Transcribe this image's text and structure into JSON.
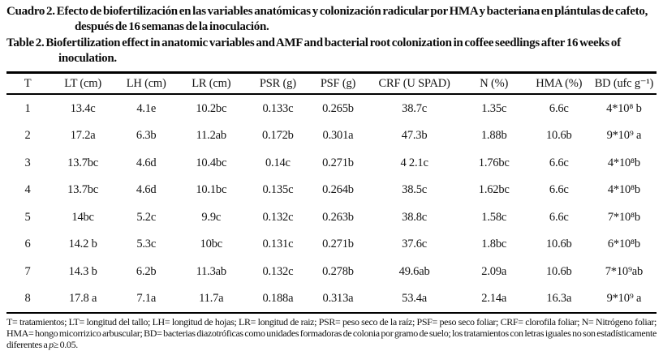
{
  "page": {
    "background": "#ffffff",
    "text_color": "#141414"
  },
  "captions": {
    "spanish": {
      "label": "Cuadro 2.",
      "text": " Efecto de biofertilización en las variables anatómicas y colonización radicular por HMA y bacteriana en plántulas de cafeto, después de 16 semanas de la inoculación."
    },
    "english": {
      "label": "Table 2.",
      "text": " Biofertilization effect in anatomic variables and AMF and bacterial root colonization in coffee seedlings after 16 weeks of inoculation."
    }
  },
  "chart_data": {
    "type": "table",
    "title": "Cuadro 2 / Table 2 — Biofertilization effect in coffee seedlings after 16 weeks of inoculation",
    "headers": [
      "T",
      "LT (cm)",
      "LH (cm)",
      "LR (cm)",
      "PSR (g)",
      "PSF (g)",
      "CRF (U SPAD)",
      "N (%)",
      "HMA (%)",
      "BD (ufc g⁻¹)"
    ],
    "col_widths_pct": [
      6.5,
      10.5,
      9,
      11,
      9.5,
      9,
      14.5,
      10,
      10,
      10
    ],
    "rows": [
      [
        "1",
        "13.4c",
        "4.1e",
        "10.2bc",
        "0.133c",
        "0.265b",
        "38.7c",
        "1.35c",
        "6.6c",
        "4*10⁸ b"
      ],
      [
        "2",
        "17.2a",
        "6.3b",
        "11.2ab",
        "0.172b",
        "0.301a",
        "47.3b",
        "1.88b",
        "10.6b",
        "9*10⁹ a"
      ],
      [
        "3",
        "13.7bc",
        "4.6d",
        "10.4bc",
        "0.14c",
        "0.271b",
        "4 2.1c",
        "1.76bc",
        "6.6c",
        "4*10⁸b"
      ],
      [
        "4",
        "13.7bc",
        "4.6d",
        "10.1bc",
        "0.135c",
        "0.264b",
        "38.5c",
        "1.62bc",
        "6.6c",
        "4*10⁸b"
      ],
      [
        "5",
        "14bc",
        "5.2c",
        "9.9c",
        "0.132c",
        "0.263b",
        "38.8c",
        "1.58c",
        "6.6c",
        "7*10⁸b"
      ],
      [
        "6",
        "14.2 b",
        "5.3c",
        "10bc",
        "0.131c",
        "0.271b",
        "37.6c",
        "1.8bc",
        "10.6b",
        "6*10⁸b"
      ],
      [
        "7",
        "14.3 b",
        "6.2b",
        "11.3ab",
        "0.132c",
        "0.278b",
        "49.6ab",
        "2.09a",
        "10.6b",
        "7*10⁹ab"
      ],
      [
        "8",
        "17.8 a",
        "7.1a",
        "11.7a",
        "0.188a",
        "0.313a",
        "53.4a",
        "2.14a",
        "16.3a",
        "9*10⁹ a"
      ]
    ]
  },
  "footnote": {
    "definitions": "T= tratamientos; LT= longitud del tallo; LH= longitud de hojas; LR= longitud de raiz; PSR= peso seco de la raíz; PSF= peso seco foliar; CRF= clorofila foliar; N= Nitrógeno foliar; HMA= hongo micorrizico arbuscular; BD= bacterias diazotróficas como unidades formadoras de colonia por gramo de suelo; los tratamientos con letras iguales no son estadísticamente diferentes a ",
    "p_symbol": "p",
    "threshold": "≥ 0.05."
  }
}
